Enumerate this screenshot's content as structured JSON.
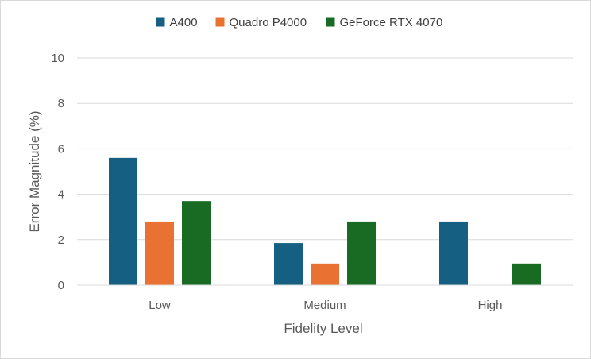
{
  "chart_data": {
    "type": "bar",
    "title": "",
    "categories": [
      "Low",
      "Medium",
      "High"
    ],
    "series": [
      {
        "name": "A400",
        "color": "#156082",
        "values": [
          5.6,
          1.85,
          2.8
        ]
      },
      {
        "name": "Quadro P4000",
        "color": "#E97132",
        "values": [
          2.8,
          0.95,
          0
        ]
      },
      {
        "name": "GeForce RTX 4070",
        "color": "#196B24",
        "values": [
          3.7,
          2.8,
          0.95
        ]
      }
    ],
    "xlabel": "Fidelity Level",
    "ylabel": "Error Magnitude (%)",
    "ylim": [
      0,
      10
    ],
    "yticks": [
      0,
      2,
      4,
      6,
      8,
      10
    ],
    "grid": true,
    "legend_position": "top"
  }
}
